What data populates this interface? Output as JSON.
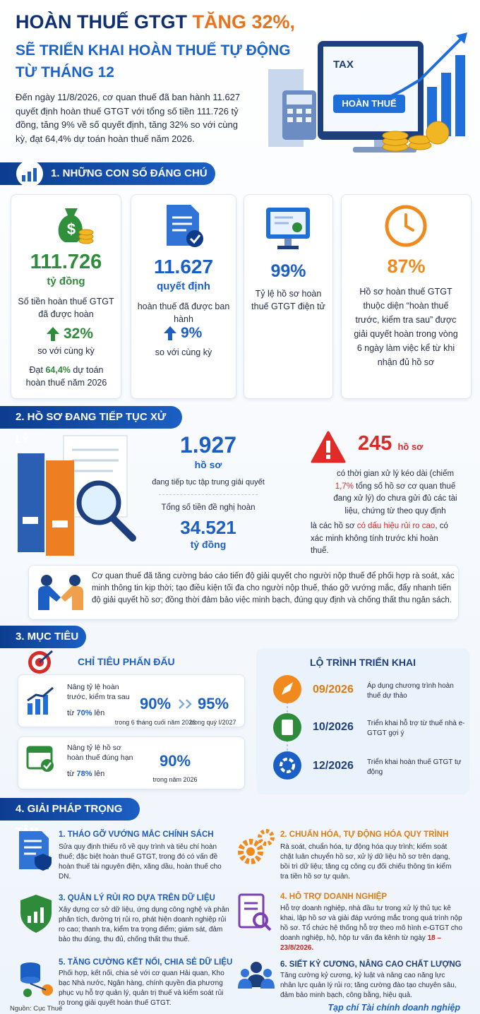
{
  "header": {
    "title_1": "HOÀN THUẾ GTGT ",
    "title_highlight": "TĂNG 32%,",
    "title_2": "SẼ TRIỂN KHAI HOÀN THUẾ TỰ ĐỘNG",
    "title_3": "TỪ THÁNG 12",
    "intro": "Đến ngày 11/8/2026, cơ quan thuế đã ban hành 11.627 quyết định hoàn thuế GTGT với tổng số tiền 111.726 tỷ đồng, tăng 9% về số quyết định, tăng 32% so với cùng kỳ, đạt 64,4% dự toán hoàn thuế năm 2026.",
    "illustration_label": "TAX",
    "illustration_button": "HOÀN THUẾ"
  },
  "section_1": {
    "heading": "1. NHỮNG CON SỐ ĐÁNG CHÚ Ý",
    "cards": [
      {
        "value": "111.726",
        "unit": "tỷ đồng",
        "description": "Số tiền hoàn thuế GTGT đã được hoàn",
        "change": "32%",
        "change_note": "so với cùng kỳ",
        "extra": [
          "Đạt ",
          "64,4%",
          " dự toán hoàn thuế năm 2026"
        ]
      },
      {
        "value": "11.627",
        "unit": "quyết định",
        "description": "hoàn thuế đã được ban hành",
        "change": "9%",
        "change_note": "so với cùng kỳ"
      },
      {
        "value": "99%",
        "description": "Tỷ lệ hồ sơ hoàn thuế GTGT điện tử"
      },
      {
        "value": "87%",
        "description": "Hồ sơ hoàn thuế GTGT thuộc diện “hoàn thuế trước, kiểm tra sau” được giải quyết hoàn trong vòng 6 ngày làm việc kể từ khi nhận đủ hồ sơ"
      }
    ]
  },
  "section_2": {
    "heading": "2. HỒ SƠ ĐANG TIẾP TỤC XỬ LÝ",
    "pending": {
      "value": "1.927",
      "unit": "hồ sơ",
      "description": "đang tiếp tục tập trung giải quyết",
      "amount_label": "Tổng số tiền đề nghị hoàn",
      "amount": "34.521",
      "amount_unit": "tỷ đồng"
    },
    "warning": {
      "value": "245",
      "unit": "hồ sơ",
      "text": [
        "có thời gian xử lý kéo dài (chiếm ",
        "1,7%",
        " tổng số hồ sơ cơ quan thuế đang xử lý) do chưa gửi đủ các tài liệu, chứng từ theo quy định"
      ],
      "text_2": [
        "là các hồ sơ ",
        "có dấu hiệu rủi ro cao",
        ", có xác minh không tính trước khi hoàn thuế."
      ]
    },
    "note": "Cơ quan thuế đã tăng cường báo cáo tiến độ giải quyết cho người nộp thuế để phối hợp rà soát, xác minh thông tin kịp thời; tạo điều kiện tối đa cho người nộp thuế, tháo gỡ vướng mắc, đẩy nhanh tiến độ giải quyết hồ sơ; đồng thời đảm bảo việc minh bạch, đúng quy định và chống thất thu ngân sách."
  },
  "section_3": {
    "heading": "3. MỤC TIÊU",
    "targets": {
      "title": "CHỈ TIÊU PHẤN ĐẤU",
      "items": [
        {
          "label": "Nâng tỷ lệ hoàn trước, kiểm tra sau",
          "from_prefix": "từ ",
          "from": "70%",
          "from_suffix": " lên",
          "goals": [
            {
              "value": "90%",
              "note": "trong 6 tháng cuối năm 2026"
            },
            {
              "value": "95%",
              "note": "trong quý I/2027"
            }
          ]
        },
        {
          "label": "Nâng tỷ lệ hồ sơ hoàn thuế đúng hạn",
          "from_prefix": "từ ",
          "from": "78%",
          "from_suffix": " lên",
          "goals": [
            {
              "value": "90%",
              "note": "trong năm 2026"
            }
          ]
        }
      ]
    },
    "roadmap": {
      "title": "LỘ TRÌNH TRIỂN KHAI",
      "steps": [
        {
          "date": "09/2026",
          "text": "Áp dụng chương trình hoàn thuế dự thảo"
        },
        {
          "date": "10/2026",
          "text": "Triển khai hỗ trợ từ thuế nhà e-GTGT gợi ý"
        },
        {
          "date": "12/2026",
          "text": "Triển khai hoàn thuế GTGT tự động"
        }
      ]
    }
  },
  "section_4": {
    "heading": "4. GIẢI PHÁP TRỌNG TÂM",
    "items": [
      {
        "title": "1. THÁO GỠ VƯỚNG MẮC CHÍNH SÁCH",
        "text": "Sửa quy định thiếu rõ về quy trình và tiêu chí hoàn thuế; đặc biệt hoàn thuế GTGT, trong đó có vấn đề hoàn thuế tài nguyên điện, xăng dầu, hoàn thuế cho DN."
      },
      {
        "title": "2. CHUẨN HÓA, TỰ ĐỘNG HÓA QUY TRÌNH",
        "text": "Rà soát, chuẩn hóa, tự động hóa quy trình; kiểm soát chặt luân chuyển hồ sơ, xử lý dữ liệu hồ sơ trên dạng, bồi trì dữ liệu; tăng cg công cụ đối chiếu thông tin kiểm tra tiền hồ sơ tự quản."
      },
      {
        "title": "3. QUẢN LÝ RỦI RO DỰA TRÊN DỮ LIỆU",
        "text": "Xây dựng cơ sở dữ liệu, ứng dụng công nghệ và phân phân tích, đường trị rủi ro, phát hiện doanh nghiệp rủi ro cao; thanh tra, kiểm tra trọng điểm; giám sát, đảm bảo thu đúng, thu đủ, chống thất thu thuế."
      },
      {
        "title": "4. HỖ TRỢ DOANH NGHIỆP",
        "text": "Hỗ trợ doanh nghiệp, nhà đầu tư trong xử lý thủ tục kê khai, lập hồ sơ và giải đáp vướng mắc trong quá trình nộp hồ sơ. Tổ chức hệ thống hỗ trợ theo mô hình e-GTGT cho doanh nghiệp, hộ, hộp tư vấn đa kênh từ ngày",
        "highlight": "18 – 23/8/2026."
      },
      {
        "title": "5. TĂNG CƯỜNG KẾT NỐI, CHIA SẺ DỮ LIỆU",
        "text": "Phối hợp, kết nối, chia sẻ với cơ quan Hải quan, Kho bạc Nhà nước, Ngân hàng, chính quyền địa phương phục vụ hỗ trợ quản lý, quản trị thuế và kiểm soát rủi ro trong giải quyết hoàn thuế GTGT."
      },
      {
        "title": "6. SIẾT KỶ CƯƠNG, NÂNG CAO CHẤT LƯỢNG",
        "text": "Tăng cường kỷ cương, kỷ luật và nâng cao năng lực nhân lực quản lý rủi ro; tăng cường đào tạo chuyên sâu, đảm bảo minh bạch, công bằng, hiệu quả."
      }
    ]
  },
  "footer": {
    "source": "Nguồn: Cục Thuế",
    "publisher": "Tạp chí Tài chính doanh nghiệp"
  }
}
